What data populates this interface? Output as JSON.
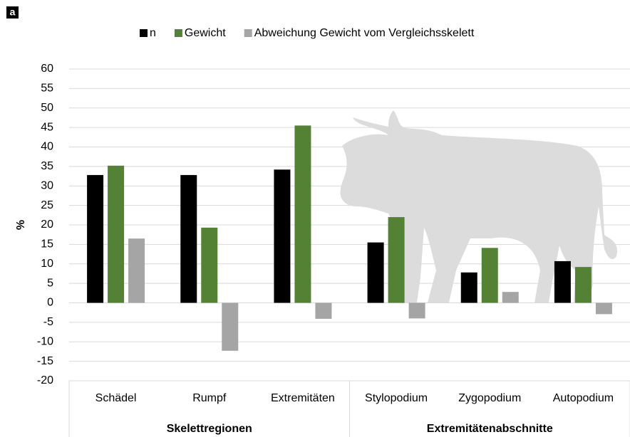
{
  "panel_label": "a",
  "chart_data": {
    "type": "bar",
    "y_label": "%",
    "categories": [
      "Schädel",
      "Rumpf",
      "Extremitäten",
      "Stylopodium",
      "Zygopodium",
      "Autopodium"
    ],
    "group_labels": [
      "Skelettregionen",
      "Extremitätenabschnitte"
    ],
    "series": [
      {
        "name": "n",
        "color": "#000000",
        "values": [
          32.8,
          32.8,
          34.2,
          15.5,
          7.8,
          10.7
        ]
      },
      {
        "name": "Gewicht",
        "color": "#548235",
        "values": [
          35.2,
          19.3,
          45.5,
          22.0,
          14.1,
          9.2
        ]
      },
      {
        "name": "Abweichung Gewicht vom Vergleichsskelett",
        "color": "#a5a5a5",
        "values": [
          16.5,
          -12.3,
          -4.1,
          -4.0,
          2.8,
          -2.9
        ]
      }
    ],
    "ylim": [
      -20,
      60
    ],
    "yticks": [
      -20,
      -15,
      -10,
      -5,
      0,
      5,
      10,
      15,
      20,
      25,
      30,
      35,
      40,
      45,
      50,
      55,
      60
    ],
    "grid": true,
    "legend": "top"
  }
}
